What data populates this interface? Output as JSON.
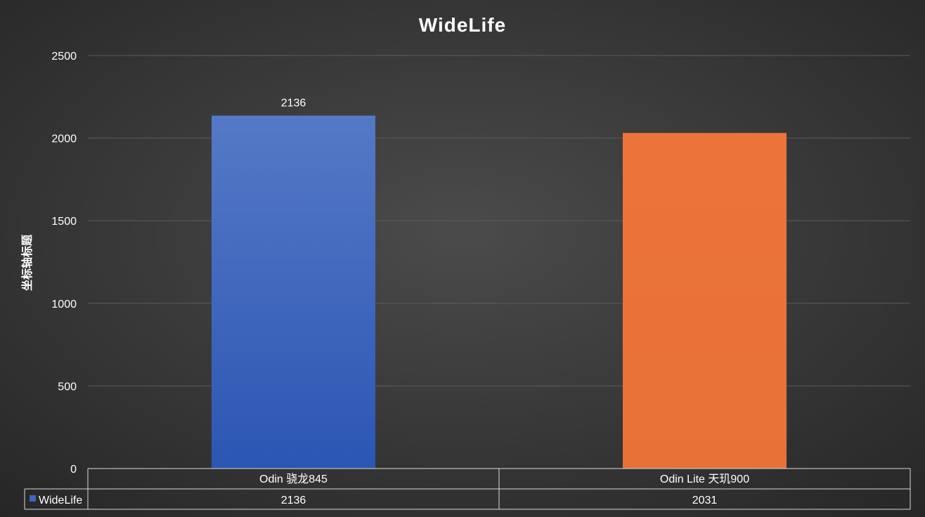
{
  "chart_data": {
    "type": "bar",
    "title": "WideLife",
    "xlabel": "",
    "ylabel": "坐标轴标题",
    "categories": [
      "Odin 骁龙845",
      "Odin Lite 天玑900"
    ],
    "series": [
      {
        "name": "WideLife",
        "values": [
          2136,
          2031
        ],
        "value_labels": [
          "2136",
          ""
        ]
      }
    ],
    "bar_colors": [
      "#3a66c4",
      "#eb7339"
    ],
    "ylim": [
      0,
      2500
    ],
    "yticks": [
      0,
      500,
      1000,
      1500,
      2000,
      2500
    ],
    "grid": true,
    "legend": "data-table",
    "data_table": {
      "legend_label": "WideLife",
      "values": [
        "2136",
        "2031"
      ]
    }
  }
}
